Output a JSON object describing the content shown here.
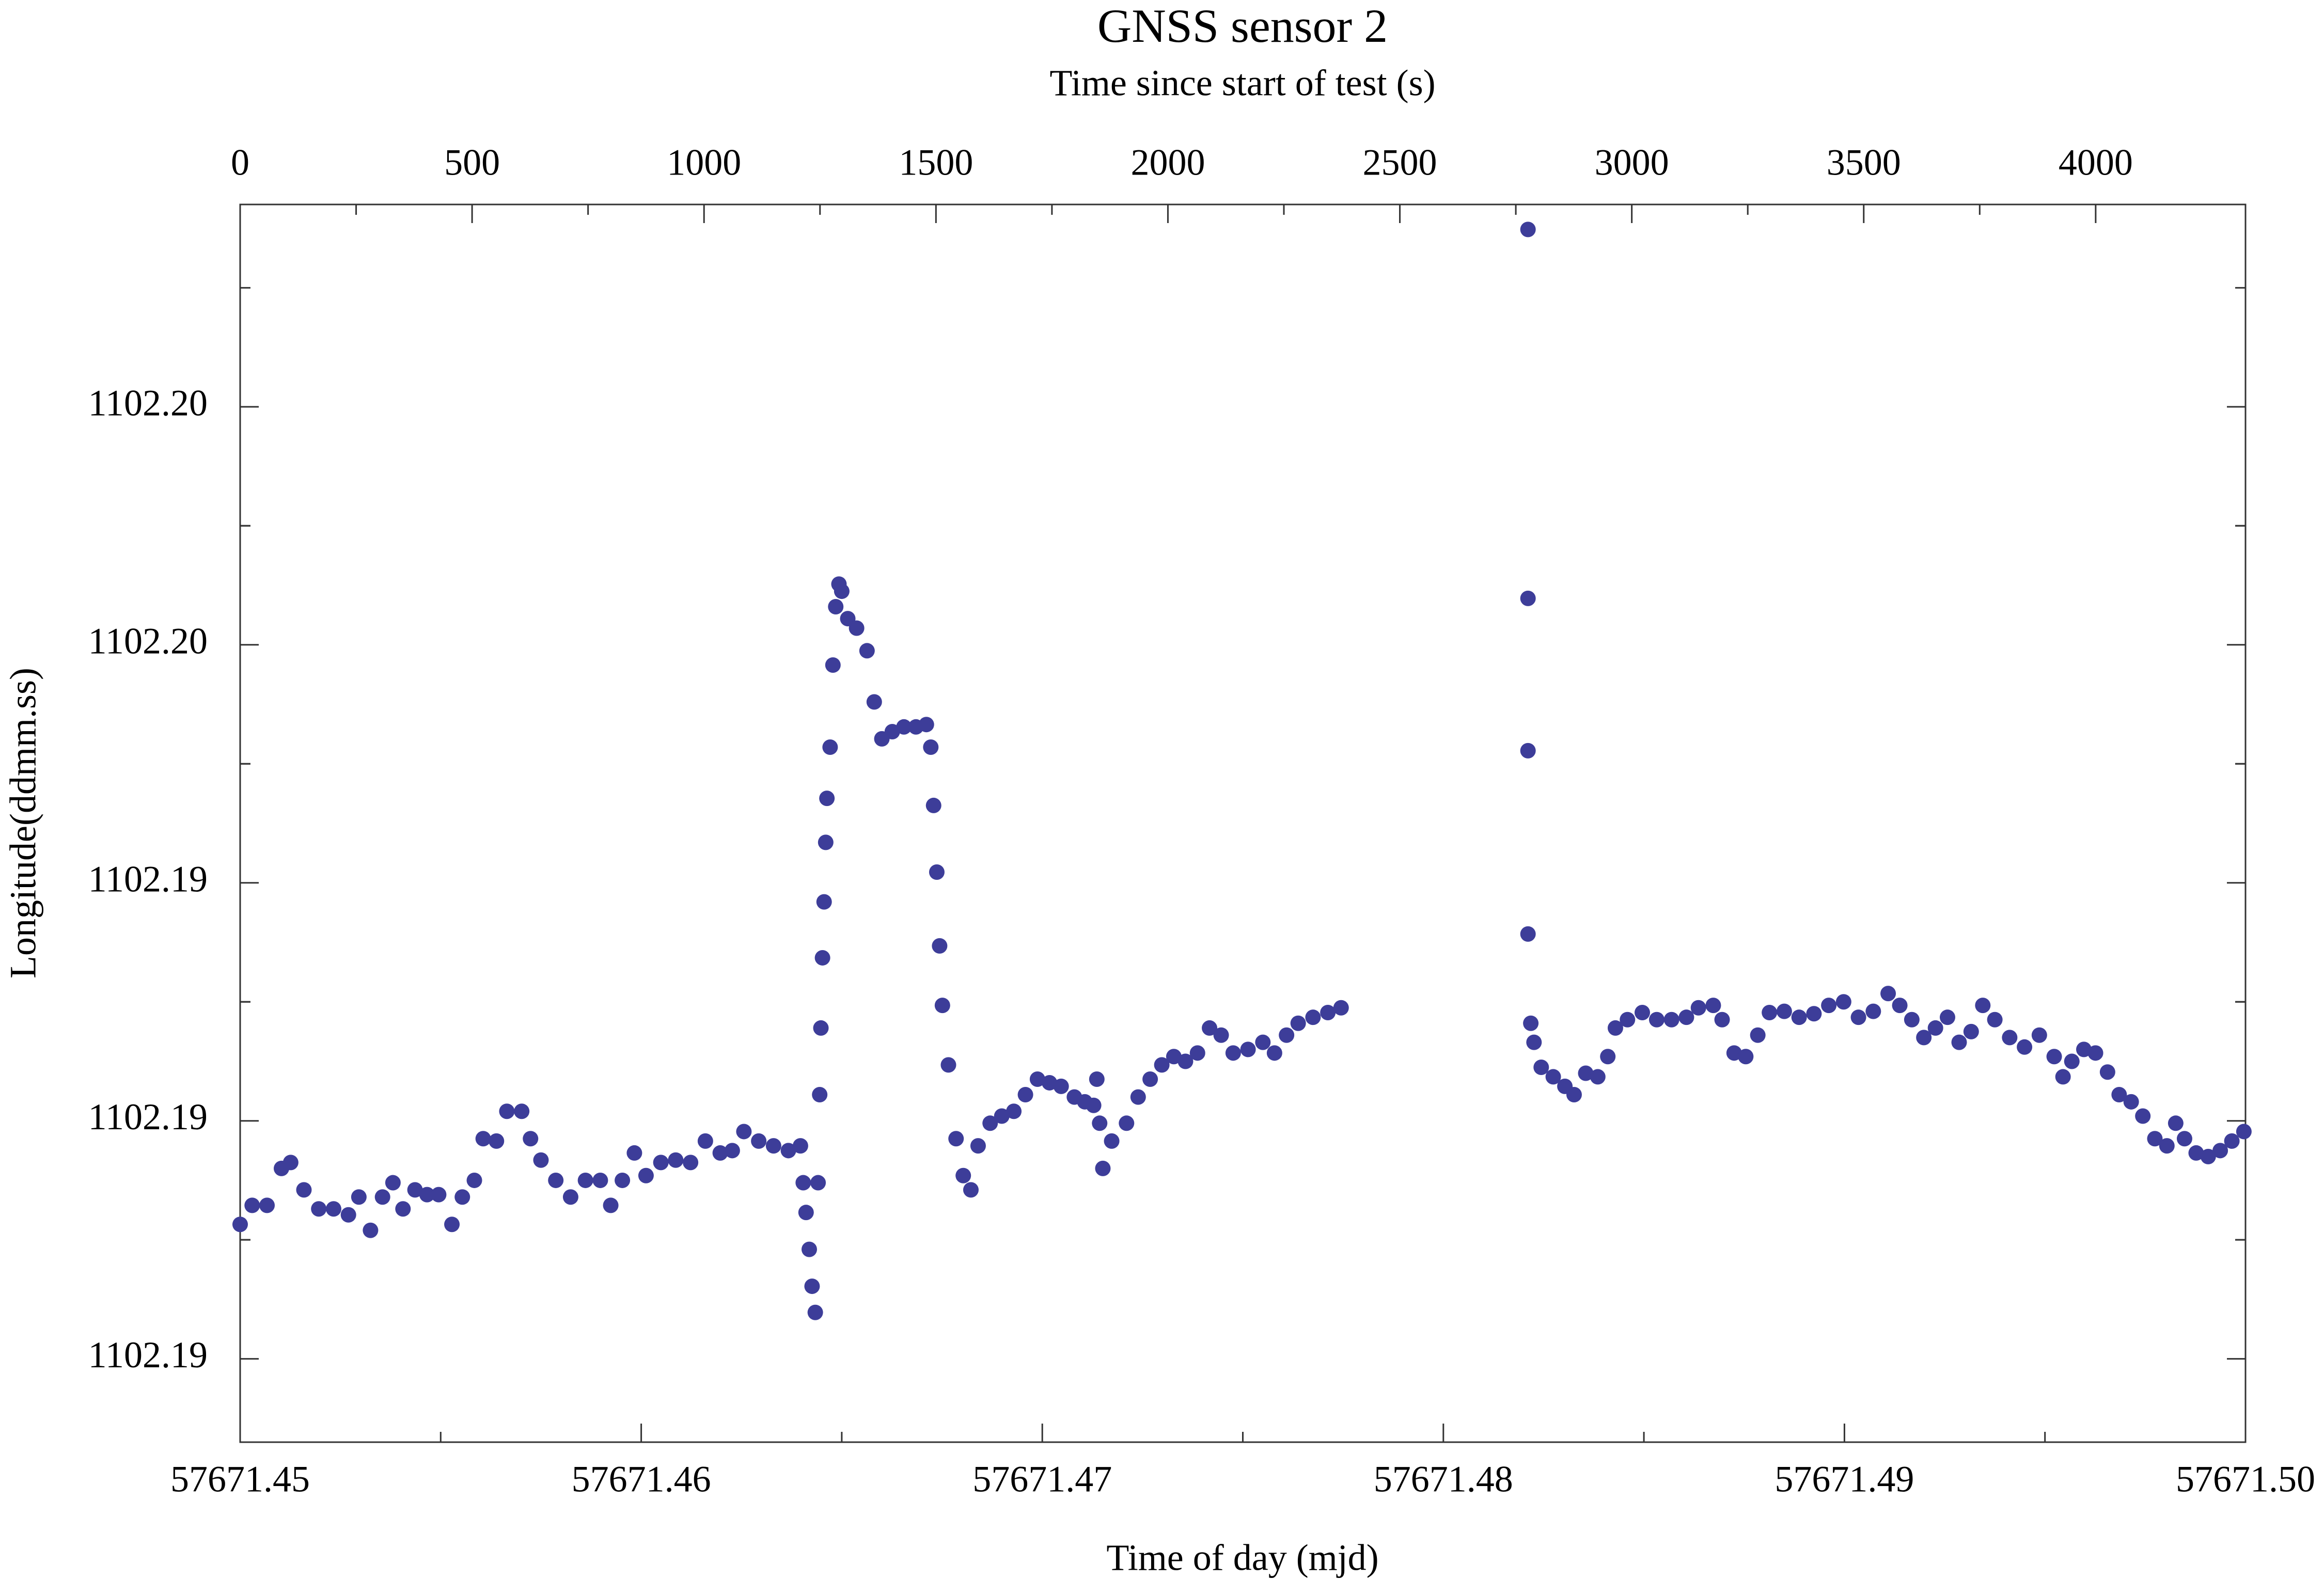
{
  "chart_data": {
    "type": "scatter",
    "title": "GNSS sensor 2",
    "x2label": "Time since start of test (s)",
    "xlabel": "Time of day (mjd)",
    "ylabel": "Longitude(ddmm.ss)",
    "color": "#3d3d99",
    "xlim": [
      57671.45,
      57671.5
    ],
    "xticks": [
      57671.45,
      57671.46,
      57671.47,
      57671.48,
      57671.49,
      {
        "value": 57671.5,
        "label": "57671.50"
      }
    ],
    "x2lim": [
      0,
      4323
    ],
    "x2ticks": [
      0,
      500,
      1000,
      1500,
      2000,
      2500,
      3000,
      3500,
      4000
    ],
    "ylim": [
      1102.1883,
      1102.1987
    ],
    "yticks": [
      {
        "value": 1102.189,
        "label": "1102.19"
      },
      {
        "value": 1102.191,
        "label": "1102.19"
      },
      {
        "value": 1102.193,
        "label": "1102.19"
      },
      {
        "value": 1102.195,
        "label": "1102.20"
      },
      {
        "value": 1102.197,
        "label": "1102.20"
      }
    ],
    "x": [
      57671.45,
      57671.4503,
      57671.45067,
      57671.45103,
      57671.45126,
      57671.45159,
      57671.45196,
      57671.45233,
      57671.4527,
      57671.45296,
      57671.45325,
      57671.45355,
      57671.45381,
      57671.45406,
      57671.45436,
      57671.45466,
      57671.45495,
      57671.45528,
      57671.45554,
      57671.45584,
      57671.45606,
      57671.45639,
      57671.45665,
      57671.45702,
      57671.45724,
      57671.4575,
      57671.45787,
      57671.45824,
      57671.45861,
      57671.45898,
      57671.45924,
      57671.45953,
      57671.45983,
      57671.46012,
      57671.46049,
      57671.46086,
      57671.46123,
      57671.4616,
      57671.46197,
      57671.46227,
      57671.46256,
      57671.46293,
      57671.4633,
      57671.46367,
      57671.46397,
      57671.46404,
      57671.46411,
      57671.46419,
      57671.46426,
      57671.46434,
      57671.46441,
      57671.46445,
      57671.46448,
      57671.46452,
      57671.46456,
      57671.4646,
      57671.46463,
      57671.46471,
      57671.46478,
      57671.46485,
      57671.46493,
      57671.465,
      57671.46515,
      57671.46537,
      57671.46563,
      57671.46581,
      57671.466,
      57671.46626,
      57671.46655,
      57671.46685,
      57671.46711,
      57671.46722,
      57671.46729,
      57671.46737,
      57671.46744,
      57671.46751,
      57671.46766,
      57671.46785,
      57671.46803,
      57671.46822,
      57671.4684,
      57671.4687,
      57671.46899,
      57671.46929,
      57671.46958,
      57671.46988,
      57671.47018,
      57671.47047,
      57671.4708,
      57671.47106,
      57671.47128,
      57671.47136,
      57671.47143,
      57671.47151,
      57671.47173,
      57671.4721,
      57671.47239,
      57671.47269,
      57671.47298,
      57671.47328,
      57671.47357,
      57671.47387,
      57671.47417,
      57671.47446,
      57671.47476,
      57671.47513,
      57671.4755,
      57671.47579,
      57671.47609,
      57671.47638,
      57671.47675,
      57671.47712,
      57671.47745,
      57671.48211,
      57671.48211,
      57671.48211,
      57671.48211,
      57671.48218,
      57671.48226,
      57671.48244,
      57671.48274,
      57671.48303,
      57671.48326,
      57671.48355,
      57671.48385,
      57671.4841,
      57671.48429,
      57671.48459,
      57671.48496,
      57671.48532,
      57671.48569,
      57671.48606,
      57671.48636,
      57671.48673,
      57671.48695,
      57671.48725,
      57671.48754,
      57671.48784,
      57671.48813,
      57671.4885,
      57671.48887,
      57671.48924,
      57671.48961,
      57671.48998,
      57671.49035,
      57671.49072,
      57671.49109,
      57671.49138,
      57671.49168,
      57671.49198,
      57671.49227,
      57671.49257,
      57671.49286,
      57671.49316,
      57671.49345,
      57671.49375,
      57671.49412,
      57671.49449,
      57671.49486,
      57671.49523,
      57671.49545,
      57671.49567,
      57671.49597,
      57671.49626,
      57671.49656,
      57671.49685,
      57671.49715,
      57671.49744,
      57671.49774,
      57671.49804,
      57671.49826,
      57671.49848,
      57671.49877,
      57671.49907,
      57671.49937,
      57671.49966,
      57671.49996
    ],
    "values": [
      1102.19013,
      1102.19029,
      1102.19029,
      1102.1906,
      1102.19065,
      1102.19042,
      1102.19026,
      1102.19026,
      1102.19021,
      1102.19036,
      1102.19008,
      1102.19036,
      1102.19048,
      1102.19026,
      1102.19042,
      1102.19038,
      1102.19038,
      1102.19013,
      1102.19036,
      1102.1905,
      1102.19085,
      1102.19083,
      1102.19108,
      1102.19108,
      1102.19085,
      1102.19067,
      1102.1905,
      1102.19036,
      1102.1905,
      1102.1905,
      1102.19029,
      1102.1905,
      1102.19073,
      1102.19054,
      1102.19065,
      1102.19067,
      1102.19065,
      1102.19083,
      1102.19073,
      1102.19075,
      1102.19091,
      1102.19083,
      1102.19079,
      1102.19075,
      1102.19079,
      1102.19048,
      1102.19023,
      1102.18992,
      1102.18961,
      1102.18939,
      1102.19048,
      1102.19122,
      1102.19178,
      1102.19237,
      1102.19284,
      1102.19334,
      1102.19371,
      1102.19414,
      1102.19483,
      1102.19532,
      1102.19551,
      1102.19545,
      1102.19522,
      1102.19514,
      1102.19495,
      1102.19452,
      1102.19421,
      1102.19427,
      1102.19431,
      1102.19431,
      1102.19433,
      1102.19414,
      1102.19365,
      1102.19309,
      1102.19247,
      1102.19197,
      1102.19147,
      1102.19085,
      1102.19054,
      1102.19042,
      1102.19079,
      1102.19098,
      1102.19104,
      1102.19108,
      1102.19122,
      1102.19135,
      1102.19132,
      1102.19129,
      1102.1912,
      1102.19116,
      1102.19113,
      1102.19135,
      1102.19098,
      1102.1906,
      1102.19083,
      1102.19098,
      1102.1912,
      1102.19135,
      1102.19147,
      1102.19154,
      1102.1915,
      1102.19157,
      1102.19178,
      1102.19172,
      1102.19157,
      1102.1916,
      1102.19166,
      1102.19157,
      1102.19172,
      1102.19182,
      1102.19187,
      1102.19191,
      1102.19195,
      1102.19849,
      1102.19539,
      1102.19411,
      1102.19257,
      1102.19182,
      1102.19166,
      1102.19145,
      1102.19137,
      1102.19129,
      1102.19122,
      1102.1914,
      1102.19137,
      1102.19154,
      1102.19178,
      1102.19185,
      1102.19191,
      1102.19185,
      1102.19185,
      1102.19187,
      1102.19195,
      1102.19197,
      1102.19185,
      1102.19157,
      1102.19154,
      1102.19172,
      1102.19191,
      1102.19192,
      1102.19187,
      1102.1919,
      1102.19197,
      1102.192,
      1102.19187,
      1102.19192,
      1102.19207,
      1102.19197,
      1102.19185,
      1102.1917,
      1102.19178,
      1102.19187,
      1102.19166,
      1102.19175,
      1102.19197,
      1102.19185,
      1102.1917,
      1102.19162,
      1102.19172,
      1102.19154,
      1102.19137,
      1102.1915,
      1102.1916,
      1102.19157,
      1102.19141,
      1102.19122,
      1102.19116,
      1102.19104,
      1102.19085,
      1102.19079,
      1102.19098,
      1102.19085,
      1102.19073,
      1102.1907,
      1102.19075,
      1102.19083,
      1102.19091
    ]
  }
}
